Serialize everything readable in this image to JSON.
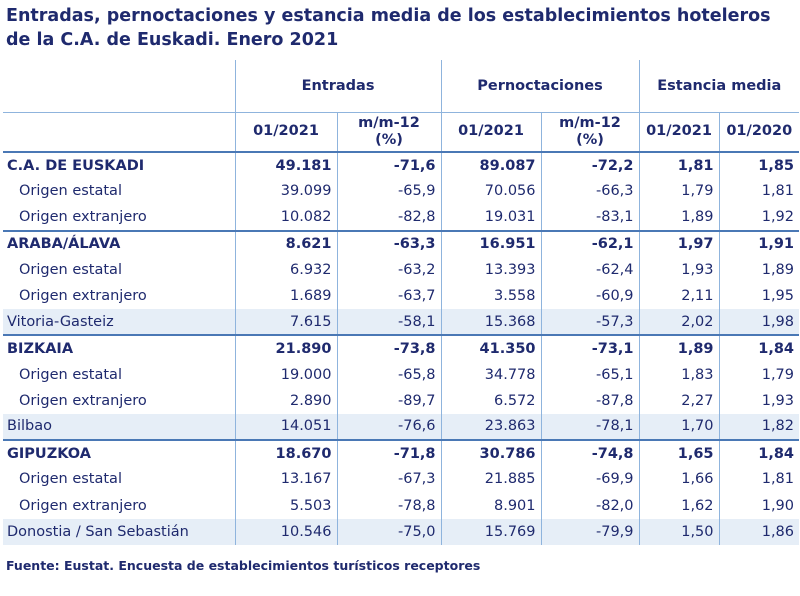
{
  "title_line1": "Entradas, pernoctaciones y estancia media de los establecimientos hoteleros",
  "title_line2": "de la C.A. de Euskadi.  Enero 2021",
  "headers": {
    "group_entradas": "Entradas",
    "group_pernoctaciones": "Pernoctaciones",
    "group_estancia": "Estancia media",
    "col_0121_a": "01/2021",
    "col_mm12_a_line1": "m/m-12",
    "col_mm12_a_line2": "(%)",
    "col_0121_b": "01/2021",
    "col_mm12_b_line1": "m/m-12",
    "col_mm12_b_line2": "(%)",
    "col_0121_c": "01/2021",
    "col_0120_c": "01/2020"
  },
  "rows": [
    {
      "label": "C.A. DE EUSKADI",
      "type": "bold",
      "v": [
        "49.181",
        "-71,6",
        "89.087",
        "-72,2",
        "1,81",
        "1,85"
      ]
    },
    {
      "label": "Origen estatal",
      "type": "sub",
      "v": [
        "39.099",
        "-65,9",
        "70.056",
        "-66,3",
        "1,79",
        "1,81"
      ]
    },
    {
      "label": "Origen extranjero",
      "type": "sub",
      "v": [
        "10.082",
        "-82,8",
        "19.031",
        "-83,1",
        "1,89",
        "1,92"
      ]
    },
    {
      "label": "ARABA/ÁLAVA",
      "type": "bold",
      "v": [
        "8.621",
        "-63,3",
        "16.951",
        "-62,1",
        "1,97",
        "1,91"
      ]
    },
    {
      "label": "Origen estatal",
      "type": "sub",
      "v": [
        "6.932",
        "-63,2",
        "13.393",
        "-62,4",
        "1,93",
        "1,89"
      ]
    },
    {
      "label": "Origen extranjero",
      "type": "sub",
      "v": [
        "1.689",
        "-63,7",
        "3.558",
        "-60,9",
        "2,11",
        "1,95"
      ]
    },
    {
      "label": "Vitoria-Gasteiz",
      "type": "city",
      "v": [
        "7.615",
        "-58,1",
        "15.368",
        "-57,3",
        "2,02",
        "1,98"
      ]
    },
    {
      "label": "BIZKAIA",
      "type": "bold",
      "v": [
        "21.890",
        "-73,8",
        "41.350",
        "-73,1",
        "1,89",
        "1,84"
      ]
    },
    {
      "label": "Origen estatal",
      "type": "sub",
      "v": [
        "19.000",
        "-65,8",
        "34.778",
        "-65,1",
        "1,83",
        "1,79"
      ]
    },
    {
      "label": "Origen extranjero",
      "type": "sub",
      "v": [
        "2.890",
        "-89,7",
        "6.572",
        "-87,8",
        "2,27",
        "1,93"
      ]
    },
    {
      "label": "Bilbao",
      "type": "city",
      "v": [
        "14.051",
        "-76,6",
        "23.863",
        "-78,1",
        "1,70",
        "1,82"
      ]
    },
    {
      "label": "GIPUZKOA",
      "type": "bold",
      "v": [
        "18.670",
        "-71,8",
        "30.786",
        "-74,8",
        "1,65",
        "1,84"
      ]
    },
    {
      "label": "Origen estatal",
      "type": "sub",
      "v": [
        "13.167",
        "-67,3",
        "21.885",
        "-69,9",
        "1,66",
        "1,81"
      ]
    },
    {
      "label": "Origen extranjero",
      "type": "sub",
      "v": [
        "5.503",
        "-78,8",
        "8.901",
        "-82,0",
        "1,62",
        "1,90"
      ]
    },
    {
      "label": "Donostia / San Sebastián",
      "type": "city",
      "v": [
        "10.546",
        "-75,0",
        "15.769",
        "-79,9",
        "1,50",
        "1,86"
      ]
    }
  ],
  "source": "Fuente: Eustat. Encuesta de establecimientos turísticos receptores"
}
